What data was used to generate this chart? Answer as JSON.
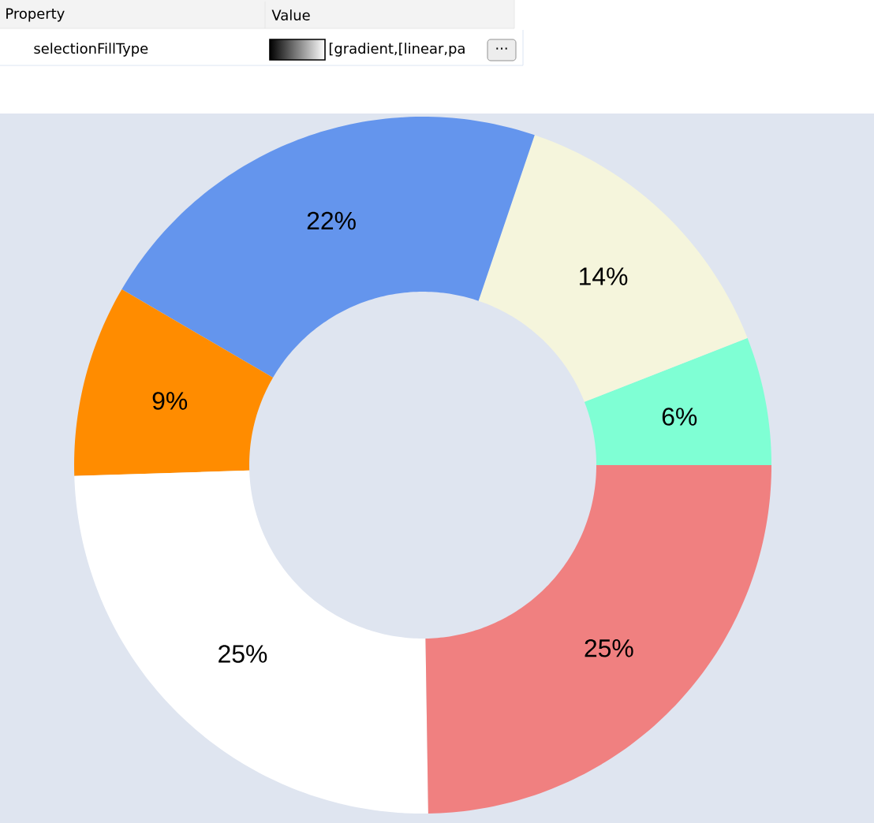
{
  "chart_data": {
    "type": "donut",
    "categories": [
      null,
      null,
      null,
      null,
      null,
      null
    ],
    "values": [
      6,
      14,
      22,
      9,
      25,
      25
    ],
    "colors": [
      "#7fffd4",
      "#f5f5dc",
      "#6495ed",
      "#ff8c00",
      "#ffffff",
      "#f08080"
    ],
    "value_labels": [
      "6%",
      "14%",
      "22%",
      "9%",
      "25%",
      "25%"
    ],
    "annotations": [
      "Property",
      "Value",
      "selectionFillType",
      "[gradient,[linear,pa",
      "..."
    ]
  }
}
